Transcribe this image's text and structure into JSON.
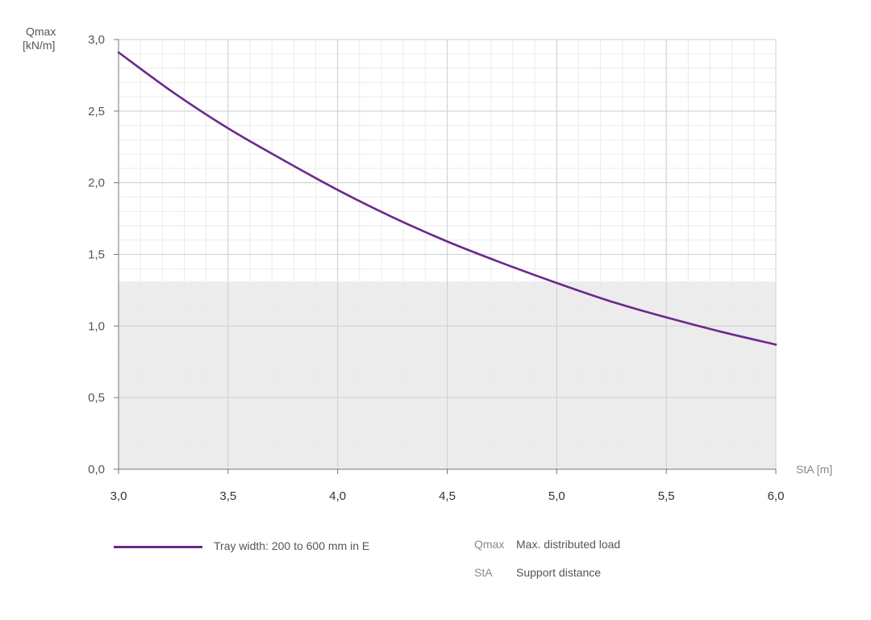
{
  "chart_data": {
    "type": "line",
    "ylabel_line1": "Qmax",
    "ylabel_line2": "[kN/m]",
    "xlabel": "StA [m]",
    "xlim": [
      3.0,
      6.0
    ],
    "ylim": [
      0.0,
      3.0
    ],
    "x_ticks": [
      3.0,
      3.5,
      4.0,
      4.5,
      5.0,
      5.5,
      6.0
    ],
    "x_tick_labels": [
      "3,0",
      "3,5",
      "4,0",
      "4,5",
      "5,0",
      "5,5",
      "6,0"
    ],
    "y_ticks": [
      0.0,
      0.5,
      1.0,
      1.5,
      2.0,
      2.5,
      3.0
    ],
    "y_tick_labels": [
      "0,0",
      "0,5",
      "1,0",
      "1,5",
      "2,0",
      "2,5",
      "3,0"
    ],
    "grid": true,
    "shaded_region_y_max": 1.31,
    "series": [
      {
        "name": "Tray width: 200 to 600 mm in E",
        "color": "#6b2a8a",
        "x": [
          3.0,
          3.25,
          3.5,
          3.75,
          4.0,
          4.25,
          4.5,
          4.75,
          5.0,
          5.25,
          5.5,
          5.75,
          6.0
        ],
        "y": [
          2.91,
          2.63,
          2.38,
          2.16,
          1.95,
          1.76,
          1.59,
          1.44,
          1.3,
          1.17,
          1.06,
          0.96,
          0.87
        ]
      }
    ]
  },
  "legend": {
    "series_label": "Tray width: 200 to 600 mm in E",
    "abbreviations": [
      {
        "key": "Qmax",
        "desc": "Max. distributed load"
      },
      {
        "key": "StA",
        "desc": "Support distance"
      }
    ]
  },
  "colors": {
    "series": "#6b2a8a",
    "shade": "#ececec",
    "grid_major": "#cfcfcf",
    "grid_minor": "#ebebeb",
    "axis": "#777777",
    "text": "#555555"
  }
}
